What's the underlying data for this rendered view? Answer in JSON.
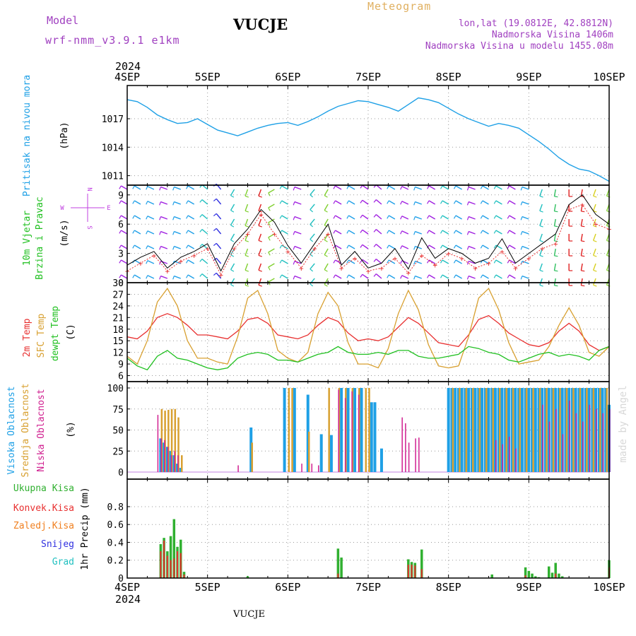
{
  "header": {
    "model_label": "Model",
    "model_name": "wrf-nmm_v3.9.1 e1km",
    "station": "VUCJE",
    "meteogram_label": "Meteogram",
    "coords": "lon,lat (19.0812E, 42.8812N)",
    "elevation": "Nadmorska Visina 1406m",
    "model_elevation": "Nadmorska Visina u modelu 1455.08m",
    "footer_station": "VUCJE",
    "signature": "made by Angel"
  },
  "time_axis": {
    "year": "2024",
    "labels": [
      "4SEP",
      "5SEP",
      "6SEP",
      "7SEP",
      "8SEP",
      "9SEP",
      "10SEP"
    ]
  },
  "colors": {
    "pressure": "#1ea0e6",
    "wind_title": "#20c020",
    "wind_compass": "#c040e0",
    "temp_2m": "#e83030",
    "temp_sfc": "#d8a030",
    "dewpoint": "#20c020",
    "cloud_high": "#1ea0e6",
    "cloud_mid": "#d8a030",
    "cloud_low": "#d02090",
    "precip_total": "#30b030",
    "precip_conv": "#e83030",
    "precip_frz": "#f08020",
    "precip_snow": "#3030e0",
    "precip_hail": "#20c0c0",
    "gust": "#000000"
  },
  "panel_labels": {
    "pressure_title": "Pritisak na nivou mora",
    "pressure_unit": "(hPa)",
    "wind_title_1": "10m Vjetar",
    "wind_title_2": "Brzina i Pravac",
    "wind_unit": "(m/s)",
    "compass_n": "N",
    "compass_s": "S",
    "compass_w": "W",
    "compass_e": "E",
    "temp_2m": "2m Temp",
    "temp_sfc": "SFC Temp",
    "temp_dew": "dewpt Temp",
    "temp_unit": "(C)",
    "cloud_high": "Visoka Oblacnost",
    "cloud_mid": "Srednja Oblacnost",
    "cloud_low": "Niska Oblacnost",
    "cloud_unit": "(%)",
    "precip_total": "Ukupna Kisa",
    "precip_conv": "Konvek.Kisa",
    "precip_frz": "Zaledj.Kisa",
    "precip_snow": "Snijeg",
    "precip_hail": "Grad",
    "precip_unit": "1hr Precip (mm)"
  },
  "chart_data": [
    {
      "type": "line",
      "name": "pressure",
      "ylim": [
        1010,
        1020.5
      ],
      "yticks": [
        "1011",
        "1014",
        "1017"
      ],
      "x_hours": [
        0,
        3,
        6,
        9,
        12,
        15,
        18,
        21,
        24,
        27,
        30,
        33,
        36,
        39,
        42,
        45,
        48,
        51,
        54,
        57,
        60,
        63,
        66,
        69,
        72,
        75,
        78,
        81,
        84,
        87,
        90,
        93,
        96,
        99,
        102,
        105,
        108,
        111,
        114,
        117,
        120,
        123,
        126,
        129,
        132,
        135,
        138,
        141,
        144
      ],
      "values": [
        1019.0,
        1018.8,
        1018.2,
        1017.4,
        1016.9,
        1016.5,
        1016.6,
        1017.0,
        1016.4,
        1015.8,
        1015.5,
        1015.2,
        1015.6,
        1016.0,
        1016.3,
        1016.5,
        1016.6,
        1016.3,
        1016.7,
        1017.2,
        1017.8,
        1018.3,
        1018.6,
        1018.9,
        1018.8,
        1018.5,
        1018.2,
        1017.8,
        1018.5,
        1019.2,
        1019.0,
        1018.7,
        1018.1,
        1017.5,
        1017.0,
        1016.6,
        1016.2,
        1016.5,
        1016.3,
        1016.0,
        1015.3,
        1014.6,
        1013.8,
        1012.9,
        1012.2,
        1011.7,
        1011.5,
        1011.0,
        1010.4
      ]
    },
    {
      "type": "scatter",
      "name": "wind",
      "ylim": [
        0,
        10
      ],
      "yticks": [
        "0",
        "3",
        "6",
        "9"
      ],
      "x_hours": [
        0,
        4,
        8,
        12,
        16,
        20,
        24,
        28,
        32,
        36,
        40,
        44,
        48,
        52,
        56,
        60,
        64,
        68,
        72,
        76,
        80,
        84,
        88,
        92,
        96,
        100,
        104,
        108,
        112,
        116,
        120,
        124,
        128,
        132,
        136,
        140,
        144
      ],
      "speed": [
        1.2,
        2.0,
        2.8,
        1.2,
        2.2,
        2.8,
        3.5,
        0.8,
        3.5,
        5.0,
        7.0,
        5.0,
        3.2,
        1.5,
        3.5,
        5.0,
        1.5,
        2.5,
        1.2,
        1.5,
        2.5,
        1.0,
        2.8,
        1.8,
        3.0,
        2.5,
        1.5,
        2.0,
        3.2,
        1.5,
        2.5,
        3.5,
        4.0,
        7.5,
        8.0,
        6.0,
        5.5
      ],
      "gust": [
        1.8,
        2.6,
        3.2,
        1.5,
        2.6,
        3.2,
        4.0,
        1.2,
        4.0,
        5.5,
        7.5,
        6.2,
        3.8,
        2.0,
        4.0,
        6.0,
        1.8,
        3.2,
        1.5,
        2.0,
        3.5,
        1.4,
        4.6,
        2.5,
        3.5,
        3.0,
        2.0,
        2.5,
        4.5,
        2.0,
        3.0,
        4.0,
        5.0,
        8.0,
        9.0,
        7.0,
        6.0
      ],
      "barb_directions_deg": [
        300,
        300,
        295,
        290,
        290,
        300,
        310,
        320,
        210,
        200,
        200,
        240,
        300,
        290,
        220,
        210,
        300,
        300,
        305,
        310,
        300,
        295,
        290,
        300,
        300,
        300,
        290,
        300,
        300,
        300,
        290,
        200,
        190,
        180,
        190,
        200,
        200
      ]
    },
    {
      "type": "line",
      "name": "temperature",
      "ylim": [
        5,
        30
      ],
      "yticks": [
        "6",
        "9",
        "12",
        "15",
        "18",
        "21",
        "24",
        "27",
        "30"
      ],
      "x_hours": [
        0,
        3,
        6,
        9,
        12,
        15,
        18,
        21,
        24,
        27,
        30,
        33,
        36,
        39,
        42,
        45,
        48,
        51,
        54,
        57,
        60,
        63,
        66,
        69,
        72,
        75,
        78,
        81,
        84,
        87,
        90,
        93,
        96,
        99,
        102,
        105,
        108,
        111,
        114,
        117,
        120,
        123,
        126,
        129,
        132,
        135,
        138,
        141,
        144
      ],
      "series": [
        {
          "name": "2m Temp",
          "values": [
            16.0,
            15.5,
            17.5,
            21.0,
            22.0,
            21.0,
            19.0,
            16.5,
            16.5,
            16.0,
            15.5,
            17.5,
            20.5,
            21.0,
            19.5,
            16.5,
            16.0,
            15.5,
            16.5,
            19.0,
            21.0,
            20.0,
            17.0,
            15.0,
            15.5,
            15.0,
            16.0,
            18.5,
            21.0,
            19.5,
            17.0,
            14.5,
            14.0,
            13.5,
            16.5,
            20.5,
            21.5,
            19.5,
            17.0,
            15.5,
            14.0,
            13.5,
            14.5,
            17.5,
            19.5,
            17.5,
            14.0,
            12.5,
            13.5
          ]
        },
        {
          "name": "SFC Temp",
          "values": [
            11.0,
            9.0,
            15.0,
            25.0,
            28.5,
            24.0,
            15.0,
            10.5,
            10.5,
            9.5,
            9.0,
            16.0,
            26.0,
            28.0,
            22.0,
            12.5,
            10.5,
            9.5,
            12.0,
            22.0,
            27.5,
            24.0,
            14.5,
            9.0,
            9.0,
            8.0,
            13.0,
            22.0,
            28.0,
            23.0,
            14.0,
            8.5,
            8.0,
            8.5,
            16.0,
            26.0,
            28.5,
            23.0,
            14.5,
            9.0,
            9.5,
            10.0,
            13.5,
            19.0,
            23.5,
            19.0,
            12.0,
            11.0,
            13.5
          ]
        },
        {
          "name": "dewpt Temp",
          "values": [
            10.5,
            8.5,
            7.5,
            11.0,
            12.5,
            10.5,
            10.0,
            9.0,
            8.0,
            7.5,
            8.0,
            10.5,
            11.5,
            12.0,
            11.5,
            10.0,
            10.0,
            9.5,
            10.5,
            11.5,
            12.0,
            13.5,
            12.0,
            11.5,
            11.5,
            12.0,
            11.5,
            12.5,
            12.5,
            11.0,
            10.5,
            10.5,
            11.0,
            11.5,
            13.5,
            13.0,
            12.0,
            11.5,
            10.0,
            9.5,
            10.5,
            11.5,
            12.0,
            11.0,
            11.5,
            11.0,
            10.0,
            12.5,
            13.5
          ]
        }
      ]
    },
    {
      "type": "bar",
      "name": "cloud_cover",
      "ylim": [
        0,
        100
      ],
      "yticks": [
        "0",
        "25",
        "50",
        "75",
        "100"
      ],
      "series": [
        {
          "name": "Visoka Oblacnost",
          "hours": [
            10,
            11,
            12,
            13,
            14,
            15,
            16,
            37,
            47,
            50,
            54,
            58,
            61,
            64,
            66,
            68,
            70,
            73,
            74,
            76,
            96,
            97,
            98,
            99,
            100,
            101,
            102,
            103,
            104,
            105,
            106,
            107,
            108,
            109,
            110,
            111,
            112,
            113,
            114,
            115,
            116,
            117,
            118,
            119,
            120,
            121,
            122,
            123,
            124,
            125,
            126,
            127,
            128,
            129,
            130,
            131,
            132,
            133,
            134,
            135,
            136,
            137,
            138,
            139,
            140,
            141,
            142,
            143,
            144
          ],
          "values": [
            40,
            35,
            30,
            25,
            20,
            10,
            5,
            53,
            100,
            100,
            92,
            45,
            44,
            100,
            100,
            100,
            100,
            83,
            83,
            28,
            100,
            100,
            100,
            100,
            100,
            100,
            100,
            100,
            100,
            100,
            100,
            100,
            100,
            100,
            100,
            100,
            100,
            100,
            100,
            100,
            100,
            100,
            100,
            100,
            100,
            100,
            100,
            100,
            100,
            100,
            100,
            100,
            100,
            100,
            100,
            100,
            100,
            100,
            100,
            100,
            100,
            100,
            100,
            100,
            100,
            100,
            100,
            100,
            80
          ]
        },
        {
          "name": "Srednja Oblacnost",
          "hours": [
            10,
            11,
            12,
            13,
            14,
            15,
            16,
            37,
            48,
            49,
            54,
            60,
            63,
            65,
            67,
            69,
            71,
            72,
            97,
            99,
            101,
            103,
            105,
            107,
            109,
            111,
            113,
            115,
            117,
            119,
            121,
            123,
            125,
            127,
            129,
            131,
            133,
            135,
            137,
            139,
            141,
            143
          ],
          "values": [
            75,
            73,
            74,
            75,
            75,
            65,
            20,
            35,
            100,
            100,
            48,
            100,
            100,
            100,
            100,
            100,
            100,
            100,
            100,
            100,
            100,
            100,
            100,
            100,
            100,
            100,
            100,
            100,
            100,
            100,
            100,
            100,
            100,
            100,
            100,
            100,
            100,
            100,
            100,
            100,
            100,
            100
          ]
        },
        {
          "name": "Niska Oblacnost",
          "hours": [
            9,
            10,
            11,
            12,
            13,
            14,
            15,
            33,
            52,
            55,
            57,
            63,
            65,
            67,
            69,
            82,
            83,
            84,
            86,
            87,
            110,
            112,
            114,
            116,
            124,
            126,
            128,
            130,
            132,
            134,
            136,
            138,
            140,
            142,
            144
          ],
          "values": [
            68,
            40,
            38,
            30,
            20,
            25,
            20,
            8,
            10,
            10,
            8,
            98,
            88,
            96,
            92,
            65,
            58,
            35,
            40,
            41,
            38,
            33,
            42,
            28,
            80,
            60,
            75,
            45,
            85,
            70,
            60,
            80,
            75,
            70,
            75
          ]
        }
      ]
    },
    {
      "type": "bar",
      "name": "precipitation",
      "ylim": [
        0,
        0.95
      ],
      "yticks": [
        "0",
        "0.2",
        "0.4",
        "0.6",
        "0.8"
      ],
      "series": [
        {
          "name": "Ukupna Kisa",
          "hours": [
            10,
            11,
            12,
            13,
            14,
            15,
            16,
            17,
            36,
            63,
            64,
            84,
            85,
            86,
            88,
            109,
            119,
            120,
            121,
            122,
            123,
            126,
            127,
            128,
            129,
            130,
            144
          ],
          "values": [
            0.38,
            0.45,
            0.3,
            0.47,
            0.66,
            0.35,
            0.43,
            0.07,
            0.02,
            0.33,
            0.23,
            0.21,
            0.18,
            0.17,
            0.32,
            0.04,
            0.12,
            0.08,
            0.05,
            0.02,
            0.01,
            0.13,
            0.06,
            0.17,
            0.05,
            0.02,
            0.2
          ]
        },
        {
          "name": "Konvek.Kisa",
          "hours": [
            10,
            11,
            12,
            13,
            14,
            15,
            16,
            17,
            63,
            84,
            85,
            86,
            88,
            119,
            128,
            144
          ],
          "values": [
            0.3,
            0.42,
            0.25,
            0.2,
            0.22,
            0.3,
            0.28,
            0.04,
            0.05,
            0.15,
            0.15,
            0.14,
            0.1,
            0.03,
            0.05,
            0.12
          ]
        }
      ]
    }
  ]
}
